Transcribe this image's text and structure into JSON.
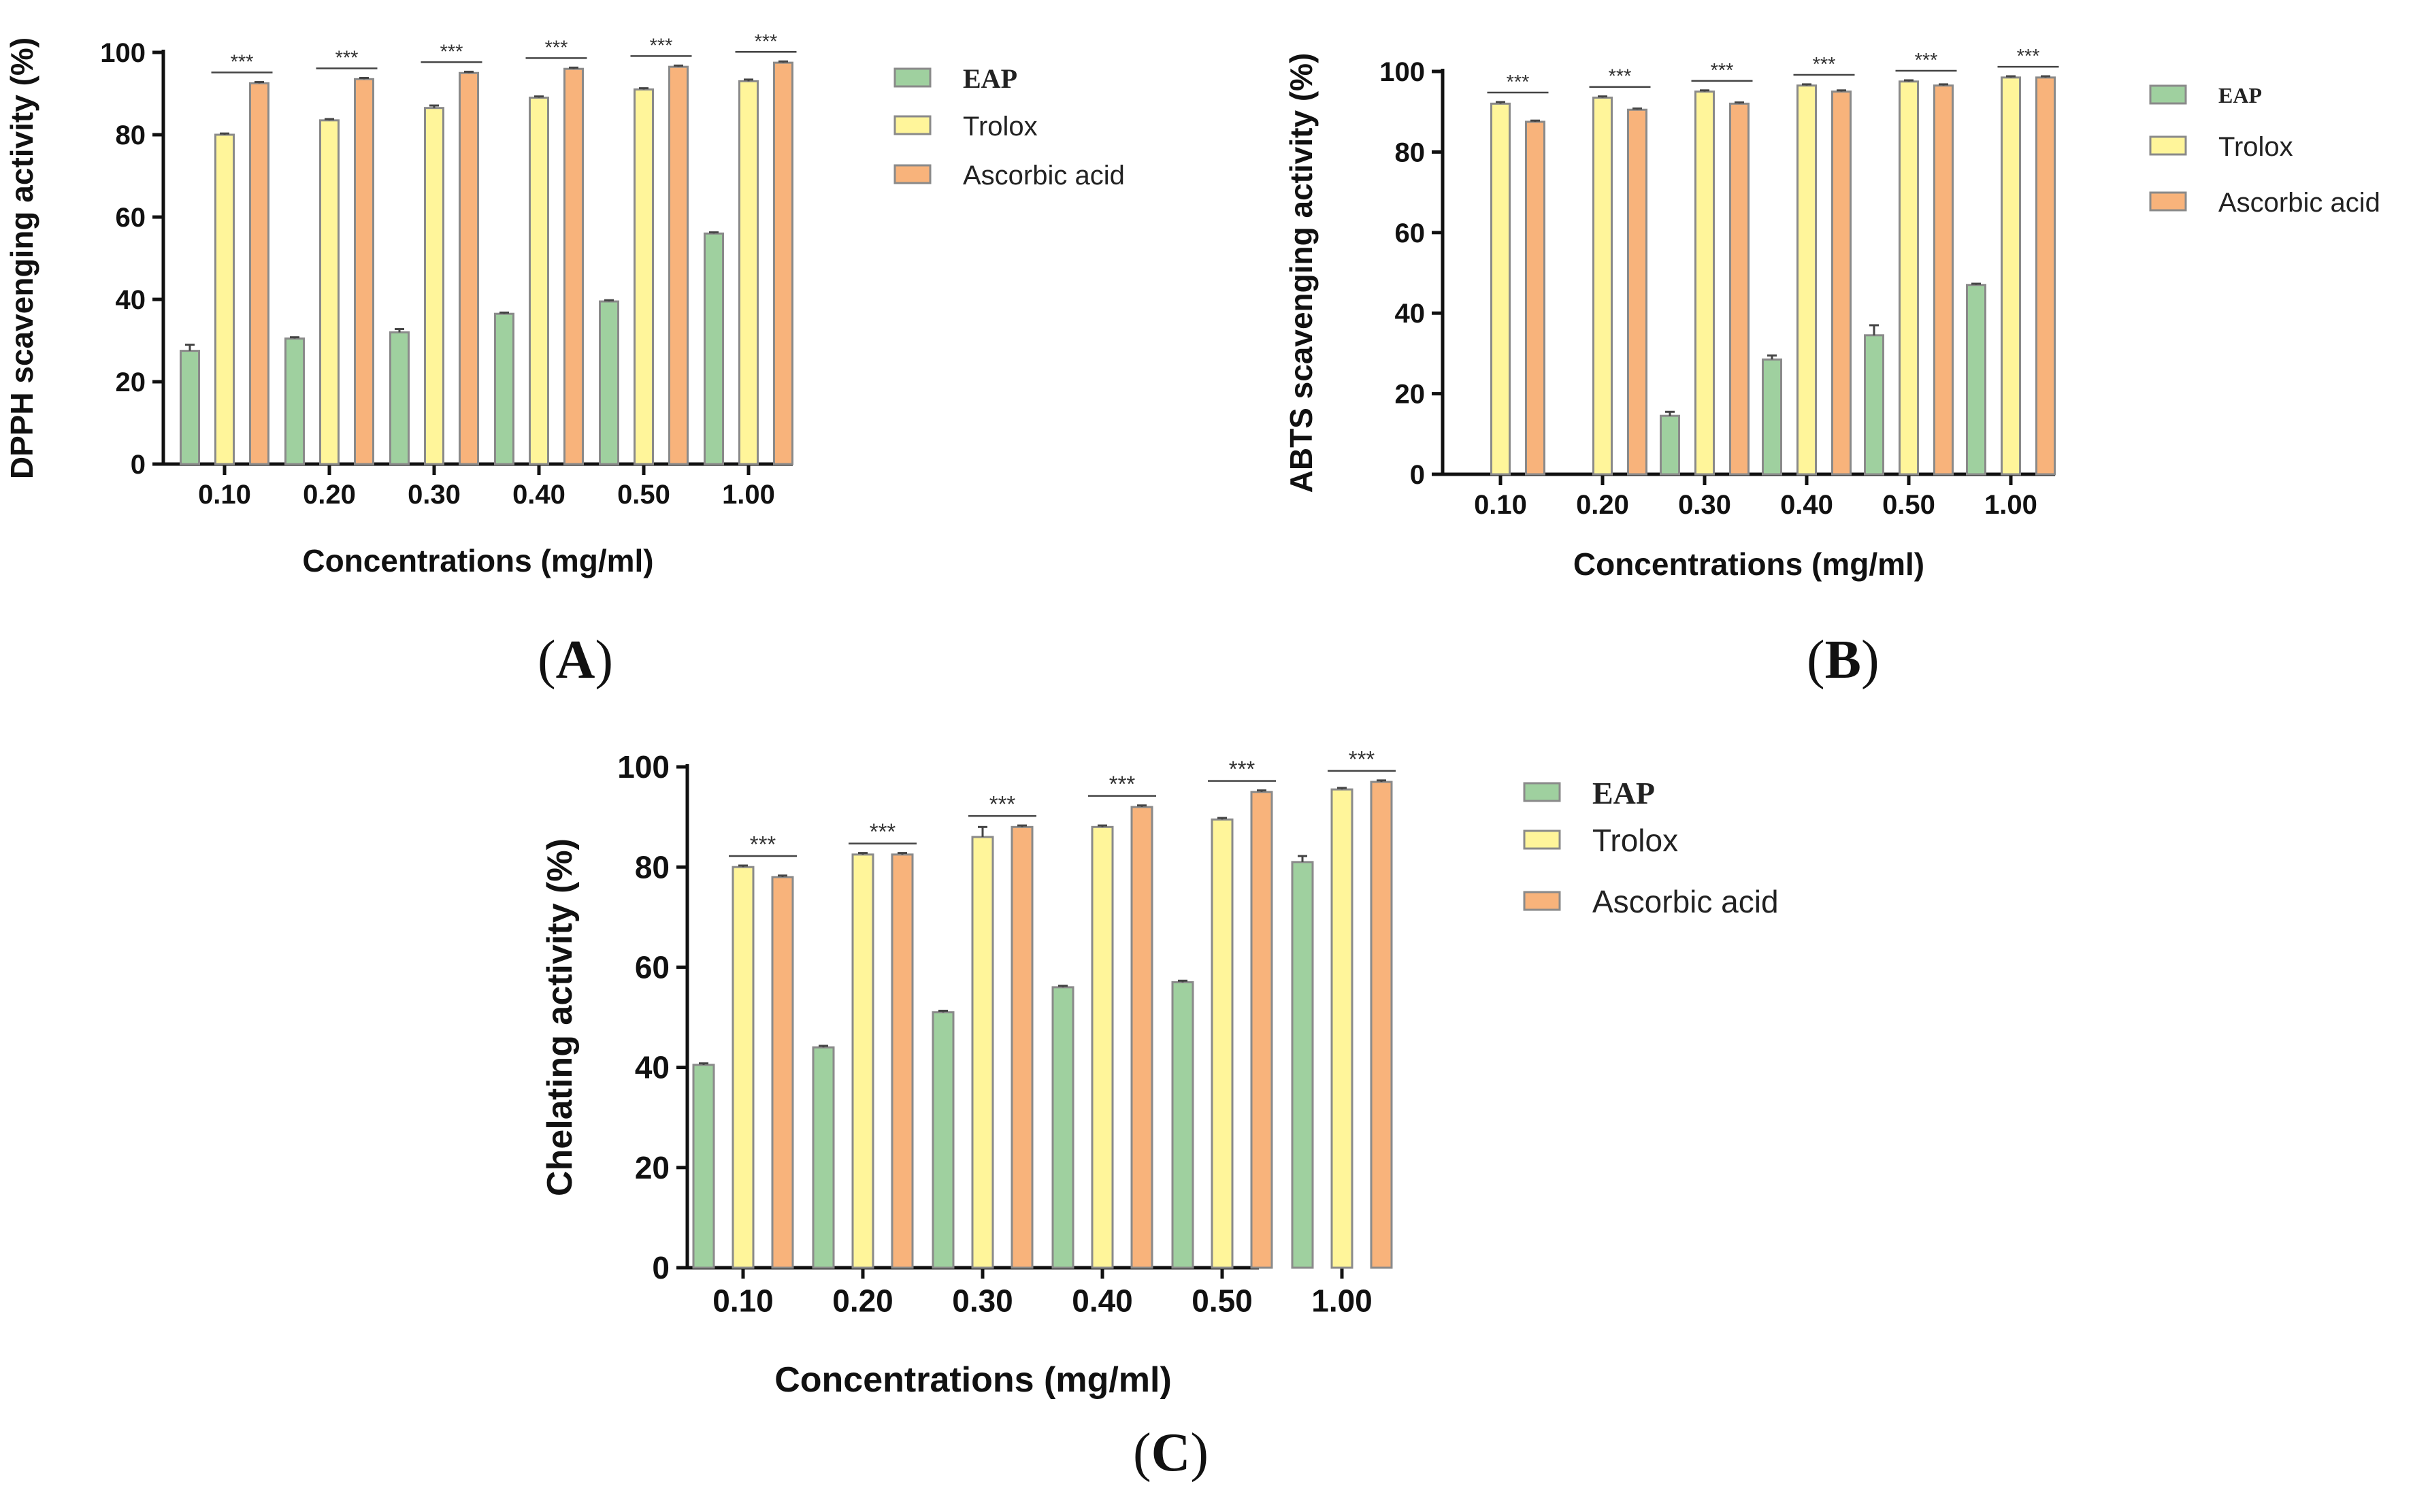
{
  "colors": {
    "eap": "#9fd09f",
    "trolox": "#fff59a",
    "ascorbic": "#f8b37b",
    "bar_edge": "#8a8a8a",
    "axis": "#111111"
  },
  "panel_labels": {
    "A": {
      "open": "(",
      "letter": "A",
      "close": ")"
    },
    "B": {
      "open": "(",
      "letter": "B",
      "close": ")"
    },
    "C": {
      "open": "(",
      "letter": "C",
      "close": ")"
    }
  },
  "chart_data": [
    {
      "id": "A",
      "type": "bar",
      "title": "",
      "xlabel": "Concentrations (mg/ml)",
      "ylabel": "DPPH scavenging activity (%)",
      "ylim": [
        0,
        100
      ],
      "yticks": [
        "0",
        "20",
        "40",
        "60",
        "80",
        "100"
      ],
      "categories": [
        "0.10",
        "0.20",
        "0.30",
        "0.40",
        "0.50",
        "1.00"
      ],
      "series": [
        {
          "name": "EAP",
          "values": [
            27.5,
            30.5,
            32,
            36.5,
            39.5,
            56
          ],
          "errors": [
            1.5,
            0.3,
            0.8,
            0.3,
            0.3,
            0.3
          ]
        },
        {
          "name": "Trolox",
          "values": [
            80,
            83.5,
            86.5,
            89,
            91,
            93
          ],
          "errors": [
            0.3,
            0.3,
            0.6,
            0.3,
            0.3,
            0.4
          ]
        },
        {
          "name": "Ascorbic acid",
          "values": [
            92.5,
            93.5,
            95,
            96,
            96.5,
            97.5
          ],
          "errors": [
            0.3,
            0.3,
            0.3,
            0.3,
            0.3,
            0.3
          ]
        }
      ],
      "significance": [
        "***",
        "***",
        "***",
        "***",
        "***",
        "***"
      ],
      "legend": {
        "position": "right",
        "font": "mixed"
      }
    },
    {
      "id": "B",
      "type": "bar",
      "title": "",
      "xlabel": "Concentrations  (mg/ml)",
      "ylabel": "ABTS scavenging activity (%)",
      "ylim": [
        0,
        100
      ],
      "yticks": [
        "0",
        "20",
        "40",
        "60",
        "80",
        "100"
      ],
      "categories": [
        "0.10",
        "0.20",
        "0.30",
        "0.40",
        "0.50",
        "1.00"
      ],
      "series": [
        {
          "name": "EAP",
          "values": [
            0,
            0,
            14.5,
            28.5,
            34.5,
            47
          ],
          "errors": [
            0,
            0,
            1,
            1,
            2.5,
            0.3
          ]
        },
        {
          "name": "Trolox",
          "values": [
            92,
            93.5,
            95,
            96.5,
            97.5,
            98.5
          ],
          "errors": [
            0.4,
            0.3,
            0.3,
            0.3,
            0.3,
            0.3
          ]
        },
        {
          "name": "Ascorbic acid",
          "values": [
            87.5,
            90.5,
            92,
            95,
            96.5,
            98.5
          ],
          "errors": [
            0.3,
            0.3,
            0.3,
            0.3,
            0.3,
            0.3
          ]
        }
      ],
      "significance": [
        "***",
        "***",
        "***",
        "***",
        "***",
        "***"
      ],
      "legend": {
        "position": "right",
        "font": "mixed"
      }
    },
    {
      "id": "C",
      "type": "bar",
      "title": "",
      "xlabel": "Concentrations  (mg/ml)",
      "ylabel": "Chelating activity (%)",
      "ylim": [
        0,
        100
      ],
      "yticks": [
        "0",
        "20",
        "40",
        "60",
        "80",
        "100"
      ],
      "categories": [
        "0.10",
        "0.20",
        "0.30",
        "0.40",
        "0.50",
        "1.00"
      ],
      "series": [
        {
          "name": "EAP",
          "values": [
            40.5,
            44,
            51,
            56,
            57,
            81
          ],
          "errors": [
            0.3,
            0.3,
            0.3,
            0.3,
            0.3,
            1.2
          ]
        },
        {
          "name": "Trolox",
          "values": [
            80,
            82.5,
            86,
            88,
            89.5,
            95.5
          ],
          "errors": [
            0.3,
            0.3,
            2,
            0.3,
            0.3,
            0.3
          ]
        },
        {
          "name": "Ascorbic acid",
          "values": [
            78,
            82.5,
            88,
            92,
            95,
            97
          ],
          "errors": [
            0.3,
            0.3,
            0.3,
            0.3,
            0.3,
            0.3
          ]
        }
      ],
      "significance": [
        "***",
        "***",
        "***",
        "***",
        "***",
        "***"
      ],
      "legend": {
        "position": "right",
        "font": "mixed"
      }
    }
  ]
}
